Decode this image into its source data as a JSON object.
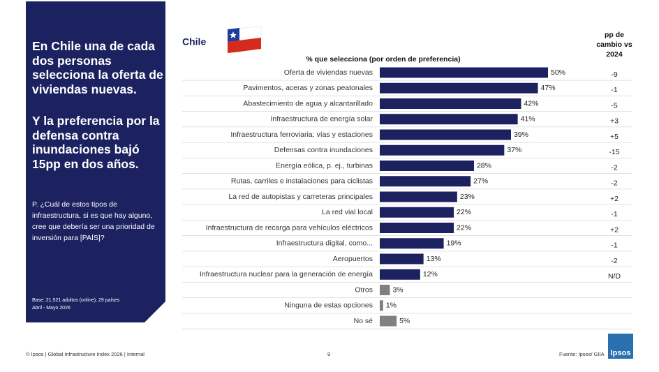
{
  "panel": {
    "headline_1": "En Chile una de cada dos personas selecciona la oferta de viviendas nuevas.",
    "headline_2": "Y la preferencia por la defensa contra inundaciones bajó 15pp en dos años.",
    "question": "P. ¿Cuál de estos tipos de infraestructura, si es que hay alguno, cree que debería ser una prioridad de inversión para [PAÍS]?",
    "base": "Base: 21.521 adultos (online), 29 países Abril - Mayo 2026"
  },
  "footer": {
    "left": "© Ipsos | Global Infrastructure Index 2026 | Internal",
    "page": "9",
    "source": "Fuente: Ipsos/ GIIA",
    "logo": "Ipsos"
  },
  "chart_data": {
    "type": "bar",
    "orientation": "horizontal",
    "country": "Chile",
    "subtitle": "% que selecciona (por orden de preferencia)",
    "categories": [
      "Oferta de viviendas nuevas",
      "Pavimentos, aceras y zonas peatonales",
      "Abastecimiento de agua y alcantarillado",
      "Infraestructura de energía solar",
      "Infraestructura ferroviaria: vías y estaciones",
      "Defensas contra inundaciones",
      "Energía eólica, p. ej., turbinas",
      "Rutas, carriles e instalaciones para ciclistas",
      "La red de autopistas y carreteras principales",
      "La red vial local",
      "Infraestructura de recarga para vehículos eléctricos",
      "Infraestructura digital, como...",
      "Aeropuertos",
      "Infraestructura nuclear para la generación de energía",
      "Otros",
      "Ninguna de estas opciones",
      "No sé"
    ],
    "values": [
      50,
      47,
      42,
      41,
      39,
      37,
      28,
      27,
      23,
      22,
      22,
      19,
      13,
      12,
      3,
      1,
      5
    ],
    "value_labels": [
      "50%",
      "47%",
      "42%",
      "41%",
      "39%",
      "37%",
      "28%",
      "27%",
      "23%",
      "22%",
      "22%",
      "19%",
      "13%",
      "12%",
      "3%",
      "1%",
      "5%"
    ],
    "colors": [
      "#1c2260",
      "#1c2260",
      "#1c2260",
      "#1c2260",
      "#1c2260",
      "#1c2260",
      "#1c2260",
      "#1c2260",
      "#1c2260",
      "#1c2260",
      "#1c2260",
      "#1c2260",
      "#1c2260",
      "#1c2260",
      "#808080",
      "#808080",
      "#808080"
    ],
    "change_header": "pp de cambio vs 2024",
    "changes": [
      "-9",
      "-1",
      "-5",
      "+3",
      "+5",
      "-15",
      "-2",
      "-2",
      "+2",
      "-1",
      "+2",
      "-1",
      "-2",
      "N/D",
      null,
      null,
      null
    ]
  }
}
